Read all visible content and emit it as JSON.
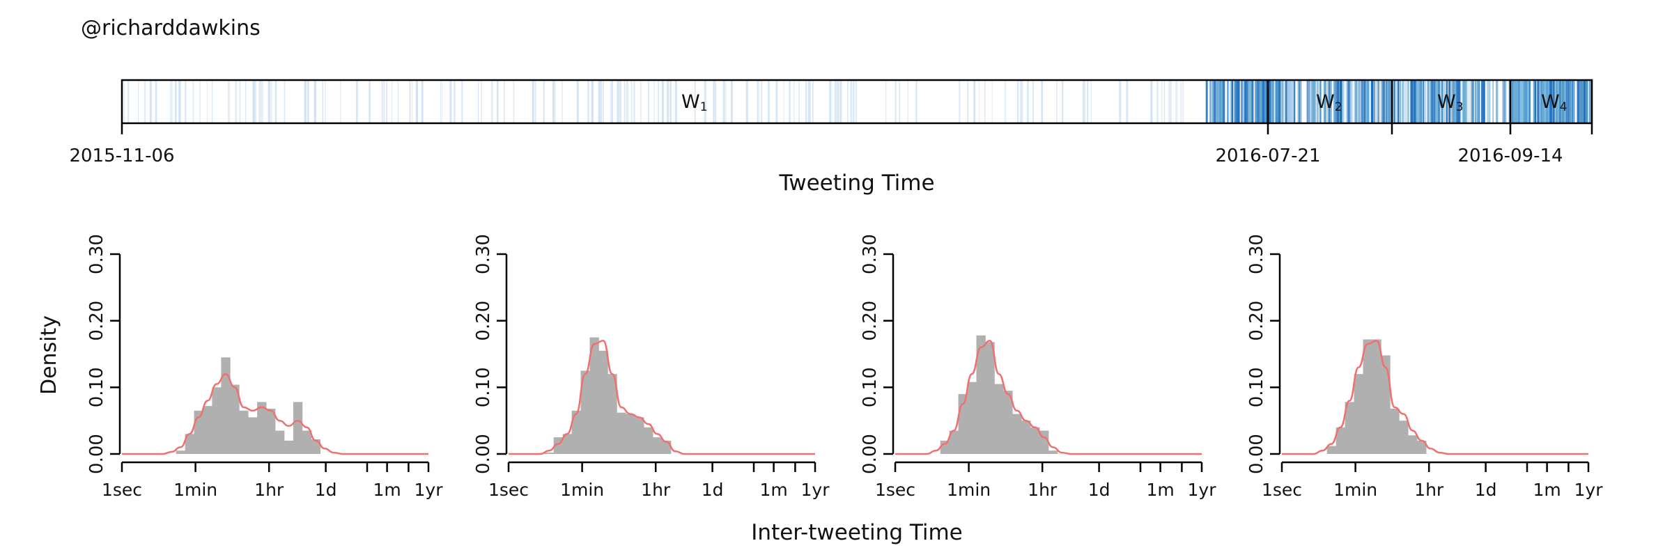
{
  "header": {
    "handle": "@richarddawkins"
  },
  "colors": {
    "hist_fill": "#b0b0b0",
    "density_line": "#f07070",
    "timeline_light": "#cfe2f3",
    "timeline_mid": "#6aaed6",
    "timeline_dark": "#1f6fbf",
    "frame": "#000000"
  },
  "timeline": {
    "axis_label": "Tweeting Time",
    "tick_labels": [
      "2015-11-06",
      "2016-07-21",
      "2016-09-14"
    ],
    "windows": [
      {
        "letter": "W",
        "sub": "1"
      },
      {
        "letter": "W",
        "sub": "2"
      },
      {
        "letter": "W",
        "sub": "3"
      },
      {
        "letter": "W",
        "sub": "4"
      }
    ]
  },
  "chart_data": [
    {
      "type": "bar",
      "panel": 1,
      "ylabel": "Density",
      "ylim": [
        0,
        0.3
      ],
      "y_ticks": [
        "0.00",
        "0.10",
        "0.20",
        "0.30"
      ],
      "x_ticks": [
        "1sec",
        "1min",
        "1hr",
        "1d",
        "1m",
        "1yr"
      ],
      "values": [
        0,
        0,
        0,
        0,
        0,
        0,
        0.005,
        0.03,
        0.065,
        0.072,
        0.1,
        0.145,
        0.104,
        0.065,
        0.055,
        0.078,
        0.068,
        0.035,
        0.02,
        0.078,
        0.035,
        0.022,
        0,
        0,
        0,
        0,
        0,
        0,
        0,
        0,
        0,
        0,
        0,
        0
      ],
      "density": [
        0,
        0,
        0,
        0,
        0,
        0.003,
        0.01,
        0.03,
        0.055,
        0.08,
        0.105,
        0.12,
        0.1,
        0.07,
        0.065,
        0.07,
        0.065,
        0.05,
        0.042,
        0.05,
        0.04,
        0.02,
        0.008,
        0.002,
        0,
        0,
        0,
        0,
        0,
        0,
        0,
        0,
        0,
        0
      ]
    },
    {
      "type": "bar",
      "panel": 2,
      "ylim": [
        0,
        0.3
      ],
      "y_ticks": [
        "0.00",
        "0.10",
        "0.20",
        "0.30"
      ],
      "x_ticks": [
        "1sec",
        "1min",
        "1hr",
        "1d",
        "1m",
        "1yr"
      ],
      "values": [
        0,
        0,
        0,
        0,
        0.002,
        0.025,
        0.03,
        0.065,
        0.125,
        0.175,
        0.155,
        0.12,
        0.062,
        0.06,
        0.055,
        0.04,
        0.025,
        0.02,
        0,
        0,
        0,
        0,
        0,
        0,
        0,
        0,
        0,
        0,
        0,
        0,
        0,
        0,
        0,
        0
      ],
      "density": [
        0,
        0,
        0,
        0,
        0.005,
        0.015,
        0.03,
        0.06,
        0.12,
        0.165,
        0.17,
        0.12,
        0.07,
        0.06,
        0.055,
        0.045,
        0.03,
        0.018,
        0.004,
        0,
        0,
        0,
        0,
        0,
        0,
        0,
        0,
        0,
        0,
        0,
        0,
        0,
        0,
        0
      ]
    },
    {
      "type": "bar",
      "panel": 3,
      "ylim": [
        0,
        0.3
      ],
      "y_ticks": [
        "0.00",
        "0.10",
        "0.20",
        "0.30"
      ],
      "x_ticks": [
        "1sec",
        "1min",
        "1hr",
        "1d",
        "1m",
        "1yr"
      ],
      "values": [
        0,
        0,
        0,
        0,
        0,
        0.02,
        0.035,
        0.09,
        0.108,
        0.178,
        0.168,
        0.105,
        0.095,
        0.06,
        0.05,
        0.04,
        0.035,
        0.005,
        0,
        0,
        0,
        0,
        0,
        0,
        0,
        0,
        0,
        0,
        0,
        0,
        0,
        0,
        0,
        0
      ],
      "density": [
        0,
        0,
        0,
        0,
        0.005,
        0.015,
        0.035,
        0.075,
        0.12,
        0.16,
        0.17,
        0.12,
        0.09,
        0.065,
        0.05,
        0.04,
        0.025,
        0.01,
        0.002,
        0,
        0,
        0,
        0,
        0,
        0,
        0,
        0,
        0,
        0,
        0,
        0,
        0,
        0,
        0
      ]
    },
    {
      "type": "bar",
      "panel": 4,
      "ylim": [
        0,
        0.3
      ],
      "y_ticks": [
        "0.00",
        "0.10",
        "0.20",
        "0.30"
      ],
      "x_ticks": [
        "1sec",
        "1min",
        "1hr",
        "1d",
        "1m",
        "1yr"
      ],
      "values": [
        0,
        0,
        0,
        0,
        0,
        0.012,
        0.04,
        0.078,
        0.12,
        0.172,
        0.172,
        0.148,
        0.068,
        0.05,
        0.028,
        0.02,
        0,
        0,
        0,
        0,
        0,
        0,
        0,
        0,
        0,
        0,
        0,
        0,
        0,
        0,
        0,
        0,
        0,
        0
      ],
      "density": [
        0,
        0,
        0,
        0,
        0.005,
        0.015,
        0.04,
        0.08,
        0.13,
        0.165,
        0.17,
        0.13,
        0.07,
        0.06,
        0.035,
        0.02,
        0.008,
        0.002,
        0,
        0,
        0,
        0,
        0,
        0,
        0,
        0,
        0,
        0,
        0,
        0,
        0,
        0,
        0,
        0
      ]
    }
  ],
  "shared_axes": {
    "ylabel": "Density",
    "xlabel": "Inter-tweeting Time"
  }
}
